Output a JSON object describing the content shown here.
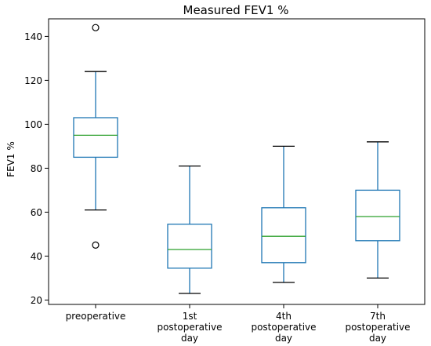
{
  "chart_data": {
    "type": "box",
    "title": "Measured FEV1 %",
    "xlabel": "",
    "ylabel": "FEV1 %",
    "ylim": [
      18,
      148
    ],
    "yticks": [
      20,
      40,
      60,
      80,
      100,
      120,
      140
    ],
    "grid": false,
    "categories": [
      [
        "preoperative"
      ],
      [
        "1st",
        "postoperative",
        "day"
      ],
      [
        "4th",
        "postoperative",
        "day"
      ],
      [
        "7th",
        "postoperative",
        "day"
      ]
    ],
    "boxes": [
      {
        "whisker_low": 61,
        "q1": 85,
        "median": 95,
        "q3": 103,
        "whisker_high": 124,
        "outliers": [
          144,
          45
        ]
      },
      {
        "whisker_low": 23,
        "q1": 34.5,
        "median": 43,
        "q3": 54.5,
        "whisker_high": 81,
        "outliers": []
      },
      {
        "whisker_low": 28,
        "q1": 37,
        "median": 49,
        "q3": 62,
        "whisker_high": 90,
        "outliers": []
      },
      {
        "whisker_low": 30,
        "q1": 47,
        "median": 58,
        "q3": 70,
        "whisker_high": 92,
        "outliers": []
      }
    ],
    "colors": {
      "box": "#1f77b4",
      "median": "#2ca02c",
      "whisker": "#000000",
      "outlier": "#000000"
    }
  }
}
